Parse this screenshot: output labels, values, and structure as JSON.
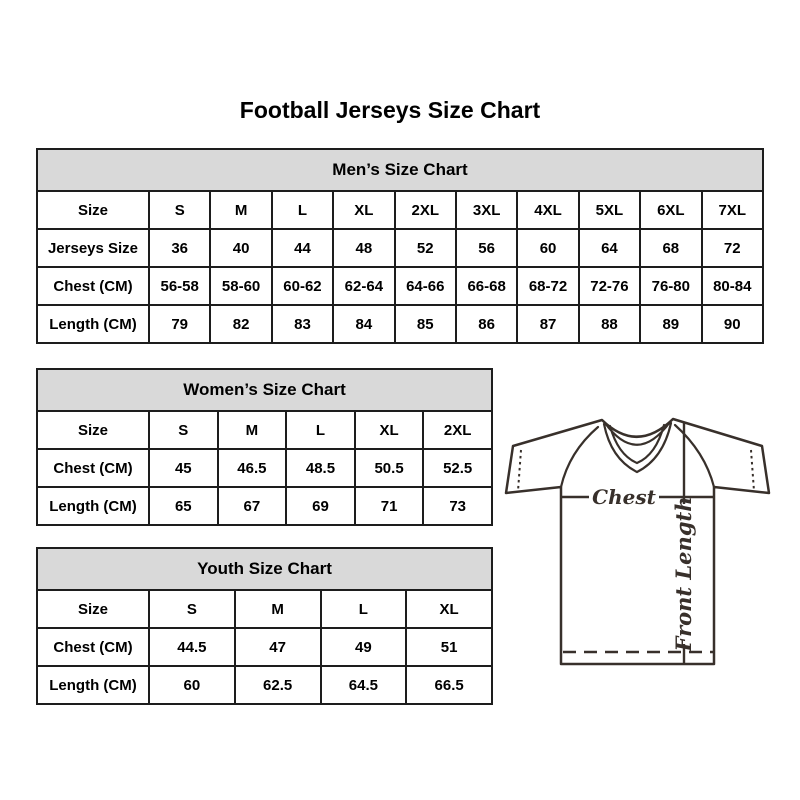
{
  "page_title": "Football Jerseys Size Chart",
  "colors": {
    "table_header_bg": "#d9d9d9",
    "table_border": "#1d1d1d",
    "jersey_line": "#38302b"
  },
  "tables": {
    "men": {
      "title": "Men’s Size Chart",
      "rows": [
        [
          "Size",
          "S",
          "M",
          "L",
          "XL",
          "2XL",
          "3XL",
          "4XL",
          "5XL",
          "6XL",
          "7XL"
        ],
        [
          "Jerseys Size",
          "36",
          "40",
          "44",
          "48",
          "52",
          "56",
          "60",
          "64",
          "68",
          "72"
        ],
        [
          "Chest (CM)",
          "56-58",
          "58-60",
          "60-62",
          "62-64",
          "64-66",
          "66-68",
          "68-72",
          "72-76",
          "76-80",
          "80-84"
        ],
        [
          "Length (CM)",
          "79",
          "82",
          "83",
          "84",
          "85",
          "86",
          "87",
          "88",
          "89",
          "90"
        ]
      ]
    },
    "women": {
      "title": "Women’s Size Chart",
      "rows": [
        [
          "Size",
          "S",
          "M",
          "L",
          "XL",
          "2XL"
        ],
        [
          "Chest (CM)",
          "45",
          "46.5",
          "48.5",
          "50.5",
          "52.5"
        ],
        [
          "Length (CM)",
          "65",
          "67",
          "69",
          "71",
          "73"
        ]
      ]
    },
    "youth": {
      "title": "Youth Size Chart",
      "rows": [
        [
          "Size",
          "S",
          "M",
          "L",
          "XL"
        ],
        [
          "Chest (CM)",
          "44.5",
          "47",
          "49",
          "51"
        ],
        [
          "Length (CM)",
          "60",
          "62.5",
          "64.5",
          "66.5"
        ]
      ]
    }
  },
  "jersey_diagram": {
    "chest_label": "Chest",
    "front_length_label": "Front Length"
  }
}
